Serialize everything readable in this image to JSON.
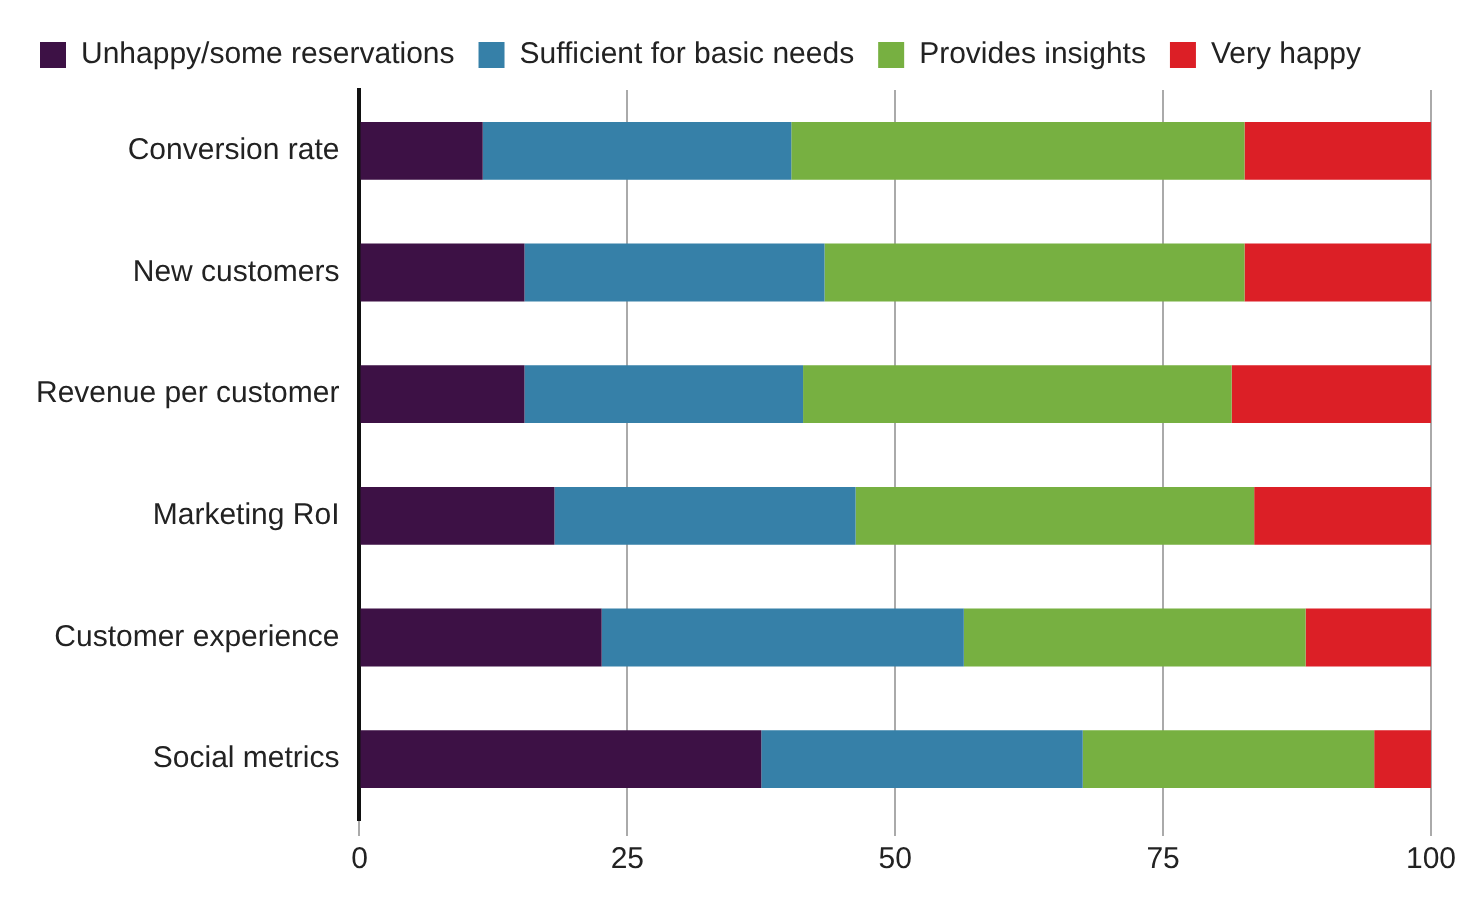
{
  "chart_data": {
    "type": "bar",
    "orientation": "horizontal",
    "stacked": true,
    "categories": [
      "Conversion rate",
      "New customers",
      "Revenue per customer",
      "Marketing RoI",
      "Customer experience",
      "Social metrics"
    ],
    "series": [
      {
        "name": "Unhappy/some reservations",
        "color": "#3d1145",
        "values": [
          11.5,
          15.4,
          15.4,
          18.2,
          22.6,
          37.5
        ]
      },
      {
        "name": "Sufficient for basic needs",
        "color": "#3680a8",
        "values": [
          28.8,
          28,
          26,
          28.1,
          33.8,
          30
        ]
      },
      {
        "name": "Provides insights",
        "color": "#77b041",
        "values": [
          42.3,
          39.2,
          40,
          37.2,
          31.9,
          27.2
        ]
      },
      {
        "name": "Very happy",
        "color": "#dc1f26",
        "values": [
          17.4,
          17.4,
          18.6,
          16.5,
          11.7,
          5.3
        ]
      }
    ],
    "xlim": [
      0,
      100
    ],
    "xticks": [
      0,
      25,
      50,
      75,
      100
    ],
    "grid": "x",
    "legend": "top left"
  }
}
